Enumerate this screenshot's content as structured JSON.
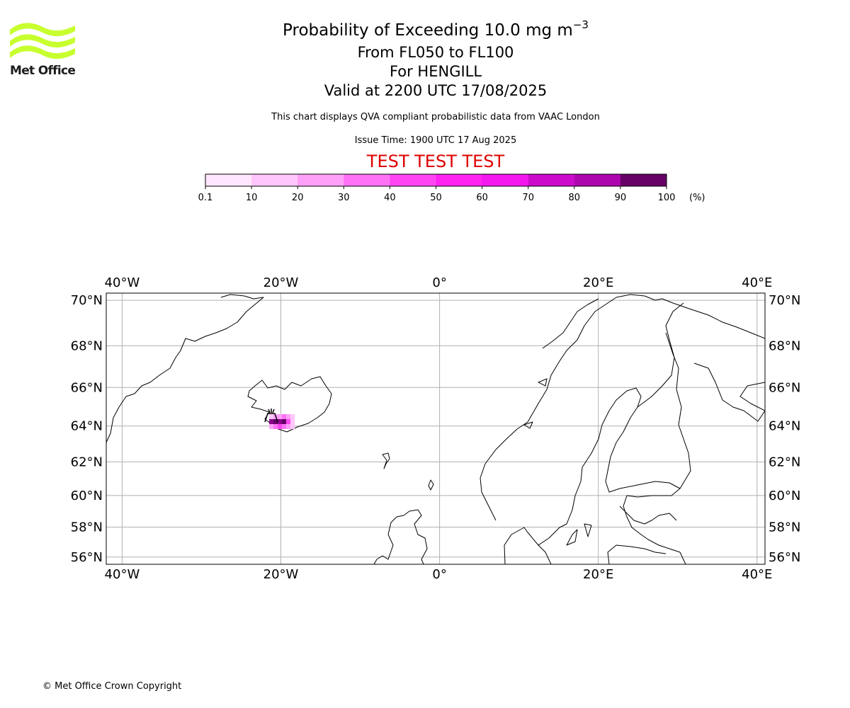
{
  "logo": {
    "text": "Met Office",
    "color": "#c8ff2e"
  },
  "title": {
    "main": "Probability of Exceeding 10.0 mg m",
    "main_exponent": "−3",
    "flight_levels": "From FL050 to FL100",
    "volcano": "For HENGILL",
    "valid": "Valid at 2200 UTC 17/08/2025"
  },
  "subtitle": "This chart displays QVA compliant probabilistic data from VAAC London",
  "issue_time": "Issue Time: 1900 UTC 17 Aug 2025",
  "test_banner": "TEST TEST TEST",
  "colorbar": {
    "ticks": [
      "0.1",
      "10",
      "20",
      "30",
      "40",
      "50",
      "60",
      "70",
      "80",
      "90",
      "100"
    ],
    "unit": "(%)",
    "colors": [
      "#ffe6fc",
      "#ffc6fb",
      "#ffa0f8",
      "#ff72f5",
      "#ff45f3",
      "#ff22f1",
      "#f218ee",
      "#cc0acc",
      "#ae06ae",
      "#8b028b",
      "#660066"
    ]
  },
  "map": {
    "lon_labels": [
      "40°W",
      "20°W",
      "0°",
      "20°E",
      "40°E"
    ],
    "lat_labels": [
      "70°N",
      "68°N",
      "66°N",
      "64°N",
      "62°N",
      "60°N",
      "58°N",
      "56°N"
    ],
    "lon_range": [
      -42,
      41
    ],
    "lat_range": [
      55.5,
      70.3
    ],
    "volcano_marker": "volcano-icon"
  },
  "copyright": "© Met Office Crown Copyright"
}
